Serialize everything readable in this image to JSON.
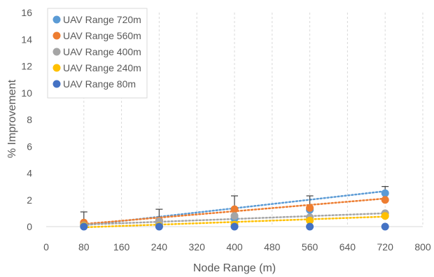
{
  "chart_data": {
    "type": "scatter",
    "title": "",
    "xlabel": "Node Range (m)",
    "ylabel": "% Improvement",
    "xlim": [
      0,
      800
    ],
    "ylim": [
      0,
      16
    ],
    "xticks": [
      "0",
      "80",
      "160",
      "240",
      "320",
      "400",
      "480",
      "560",
      "640",
      "720",
      "800"
    ],
    "yticks": [
      "0",
      "2",
      "4",
      "6",
      "8",
      "10",
      "12",
      "14",
      "16"
    ],
    "grid": "vertical dashed",
    "legend_position": "top-left",
    "trendlines": "dotted linear per series",
    "error_bars": "vertical, upper only",
    "series": [
      {
        "name": "UAV Range 720m",
        "color": "#5b9bd5",
        "x": [
          80,
          240,
          400,
          560,
          720
        ],
        "y": [
          0.15,
          0.2,
          0.6,
          1.25,
          2.5
        ],
        "err": [
          0,
          0,
          0,
          0,
          0
        ],
        "trend": [
          0.1,
          2.65
        ]
      },
      {
        "name": "UAV Range 560m",
        "color": "#ed7d31",
        "x": [
          80,
          240,
          400,
          560,
          720
        ],
        "y": [
          0.3,
          0.45,
          1.3,
          1.4,
          2.0
        ],
        "err": [
          0.8,
          0.85,
          1.0,
          0.9,
          1.0
        ],
        "trend": [
          0.2,
          2.1
        ]
      },
      {
        "name": "UAV Range 400m",
        "color": "#a5a5a5",
        "x": [
          80,
          240,
          400,
          560,
          720
        ],
        "y": [
          0.1,
          0.4,
          0.8,
          0.7,
          1.0
        ],
        "err": [
          0,
          0,
          0,
          0,
          0
        ],
        "trend": [
          0.15,
          1.0
        ]
      },
      {
        "name": "UAV Range 240m",
        "color": "#ffc000",
        "x": [
          80,
          240,
          400,
          560,
          720
        ],
        "y": [
          0.05,
          0.05,
          0.15,
          0.45,
          0.8
        ],
        "err": [
          0,
          0,
          0,
          0,
          0
        ],
        "trend": [
          -0.05,
          0.75
        ]
      },
      {
        "name": "UAV Range 80m",
        "color": "#4472c4",
        "x": [
          80,
          240,
          400,
          560,
          720
        ],
        "y": [
          0.0,
          0.0,
          0.0,
          0.0,
          0.0
        ],
        "err": [
          0,
          0,
          0,
          0,
          0
        ],
        "trend": [
          0.0,
          0.0
        ]
      }
    ]
  }
}
